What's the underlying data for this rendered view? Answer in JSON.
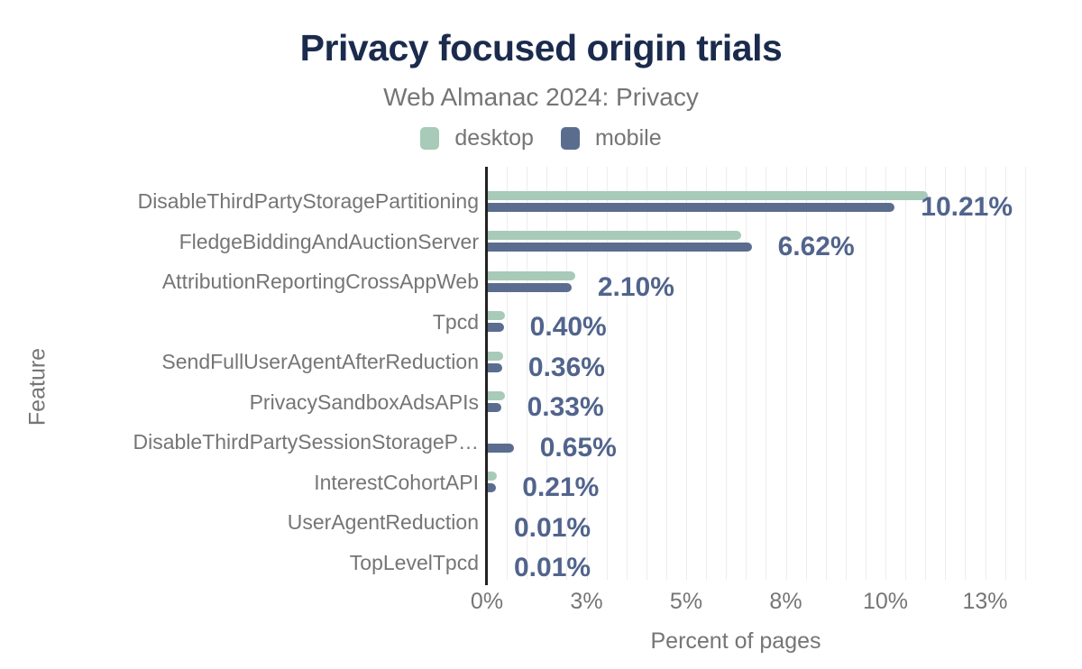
{
  "header": {
    "title": "Privacy focused origin trials",
    "subtitle": "Web Almanac 2024: Privacy"
  },
  "legend": {
    "items": [
      {
        "label": "desktop",
        "color": "#a8cab8"
      },
      {
        "label": "mobile",
        "color": "#5b6d8f"
      }
    ]
  },
  "axes": {
    "x_title": "Percent of pages",
    "y_title": "Feature",
    "x_tick_labels": [
      "0%",
      "3%",
      "5%",
      "8%",
      "10%",
      "13%"
    ]
  },
  "colors": {
    "title": "#1b2b4d",
    "text_gray": "#757575",
    "value_label": "#51648c",
    "axis_line": "#212121",
    "gridline": "#ededed",
    "desktop": "#a8cab8",
    "mobile": "#5b6d8f"
  },
  "chart_data": {
    "type": "bar",
    "orientation": "horizontal",
    "title": "Privacy focused origin trials",
    "subtitle": "Web Almanac 2024: Privacy",
    "xlabel": "Percent of pages",
    "ylabel": "Feature",
    "xlim": [
      0,
      13.75
    ],
    "x_tick_values": [
      0,
      2.5,
      5,
      7.5,
      10,
      12.5
    ],
    "x_tick_labels": [
      "0%",
      "3%",
      "5%",
      "8%",
      "10%",
      "13%"
    ],
    "grid": "vertical, minor every 0.5%",
    "legend_position": "top",
    "categories": [
      "DisableThirdPartyStoragePartitioning",
      "FledgeBiddingAndAuctionServer",
      "AttributionReportingCrossAppWeb",
      "Tpcd",
      "SendFullUserAgentAfterReduction",
      "PrivacySandboxAdsAPIs",
      "DisableThirdPartySessionStorageP…",
      "InterestCohortAPI",
      "UserAgentReduction",
      "TopLevelTpcd"
    ],
    "series": [
      {
        "name": "desktop",
        "color": "#a8cab8",
        "values": [
          11.05,
          6.35,
          2.2,
          0.42,
          0.38,
          0.42,
          0,
          0.22,
          0.01,
          0.01
        ]
      },
      {
        "name": "mobile",
        "color": "#5b6d8f",
        "values": [
          10.21,
          6.62,
          2.1,
          0.4,
          0.36,
          0.33,
          0.65,
          0.21,
          0.01,
          0.01
        ]
      }
    ],
    "data_labels": {
      "labeled_series": "mobile",
      "values": [
        "10.21%",
        "6.62%",
        "2.10%",
        "0.40%",
        "0.36%",
        "0.33%",
        "0.65%",
        "0.21%",
        "0.01%",
        "0.01%"
      ]
    }
  }
}
